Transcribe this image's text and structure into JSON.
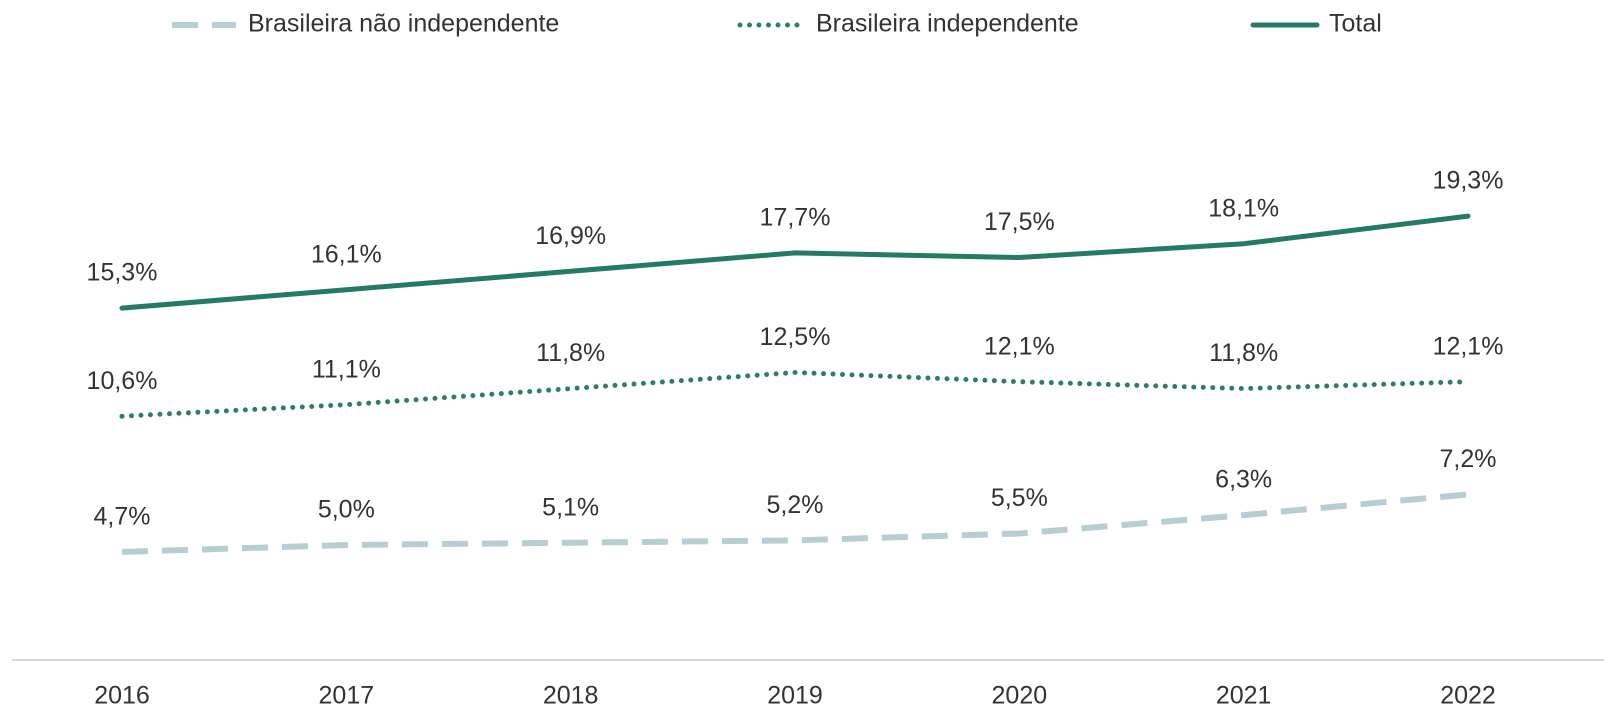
{
  "chart_data": {
    "type": "line",
    "categories": [
      "2016",
      "2017",
      "2018",
      "2019",
      "2020",
      "2021",
      "2022"
    ],
    "series": [
      {
        "name": "Brasileira não independente",
        "color": "#b8cdd3",
        "style": "dashed",
        "values": [
          4.7,
          5.0,
          5.1,
          5.2,
          5.5,
          6.3,
          7.2
        ],
        "value_labels": [
          "4,7%",
          "5,0%",
          "5,1%",
          "5,2%",
          "5,5%",
          "6,3%",
          "7,2%"
        ]
      },
      {
        "name": "Brasileira independente",
        "color": "#2e7d6b",
        "style": "dotted",
        "values": [
          10.6,
          11.1,
          11.8,
          12.5,
          12.1,
          11.8,
          12.1
        ],
        "value_labels": [
          "10,6%",
          "11,1%",
          "11,8%",
          "12,5%",
          "12,1%",
          "11,8%",
          "12,1%"
        ]
      },
      {
        "name": "Total",
        "color": "#247a64",
        "style": "solid",
        "values": [
          15.3,
          16.1,
          16.9,
          17.7,
          17.5,
          18.1,
          19.3
        ],
        "value_labels": [
          "15,3%",
          "16,1%",
          "16,9%",
          "17,7%",
          "17,5%",
          "18,1%",
          "19,3%"
        ]
      }
    ],
    "legend": "top"
  }
}
